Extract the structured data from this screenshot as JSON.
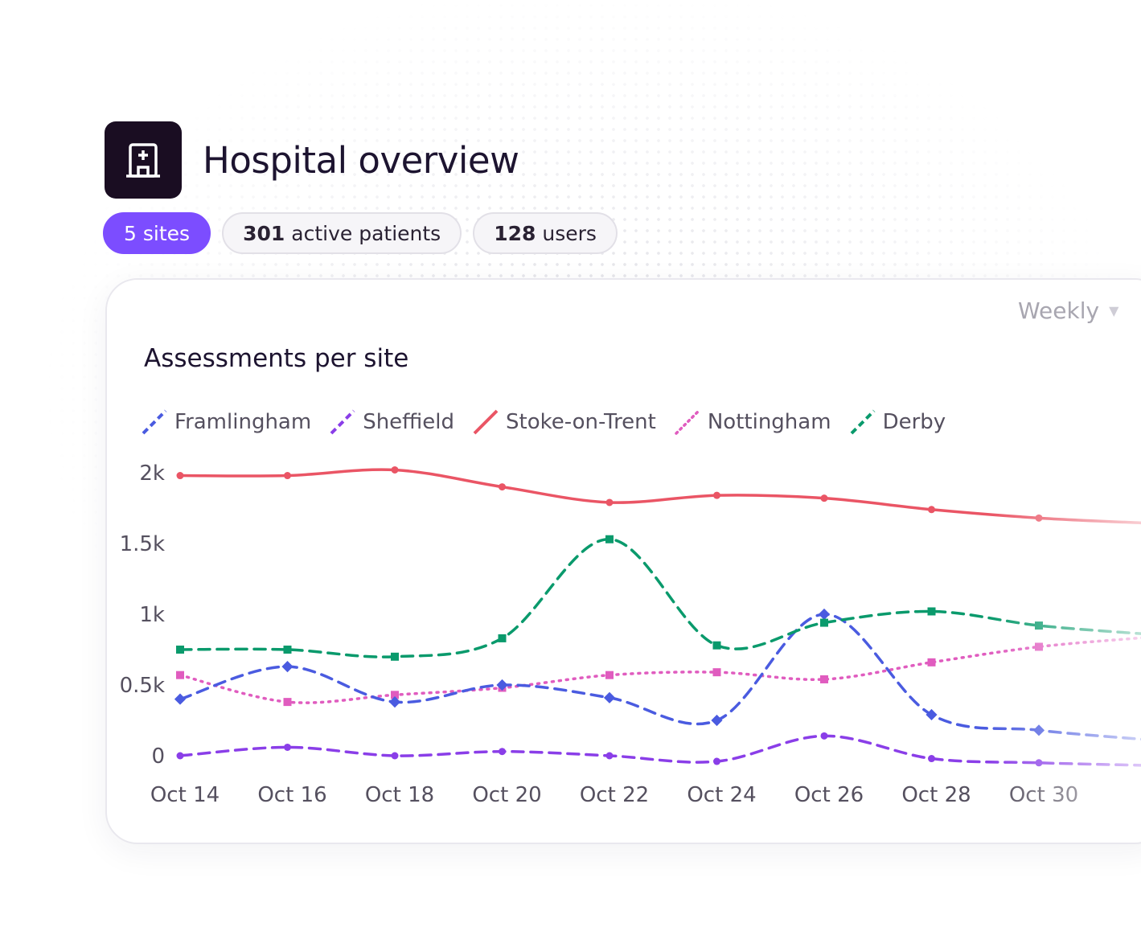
{
  "header": {
    "title": "Hospital overview",
    "logo_icon": "hospital-icon"
  },
  "pills": {
    "sites": {
      "value": "5",
      "label": "sites"
    },
    "patients": {
      "value": "301",
      "label": "active patients"
    },
    "users": {
      "value": "128",
      "label": "users"
    }
  },
  "period_select": {
    "value": "Weekly"
  },
  "colors": {
    "brand": "#7c4dff",
    "framlingham": "#4a5be0",
    "sheffield": "#8a3ee8",
    "stoke": "#ea5565",
    "nottingham": "#e05cbf",
    "derby": "#0a9a6c"
  },
  "chart_data": {
    "type": "line",
    "title": "Assessments per site",
    "x": [
      "Oct 14",
      "Oct 16",
      "Oct 18",
      "Oct 20",
      "Oct 22",
      "Oct 24",
      "Oct 26",
      "Oct 28",
      "Oct 30"
    ],
    "y_ticks": [
      "2k",
      "1.5k",
      "1k",
      "0.5k",
      "0"
    ],
    "ylim": [
      0,
      2000
    ],
    "legend_position": "top-left",
    "series": [
      {
        "name": "Framlingham",
        "style": "dashed",
        "marker": "diamond",
        "values": [
          400,
          630,
          380,
          500,
          410,
          250,
          1000,
          290,
          180
        ]
      },
      {
        "name": "Sheffield",
        "style": "dashed",
        "marker": "circle",
        "values": [
          0,
          60,
          0,
          30,
          0,
          -40,
          140,
          -20,
          -50
        ]
      },
      {
        "name": "Stoke-on-Trent",
        "style": "solid",
        "marker": "circle",
        "values": [
          1980,
          1980,
          2020,
          1900,
          1790,
          1840,
          1820,
          1740,
          1680
        ]
      },
      {
        "name": "Nottingham",
        "style": "dotted",
        "marker": "square",
        "values": [
          570,
          380,
          430,
          480,
          570,
          590,
          540,
          660,
          770
        ]
      },
      {
        "name": "Derby",
        "style": "dashed",
        "marker": "square",
        "values": [
          750,
          750,
          700,
          830,
          1530,
          780,
          940,
          1020,
          920
        ]
      }
    ]
  }
}
